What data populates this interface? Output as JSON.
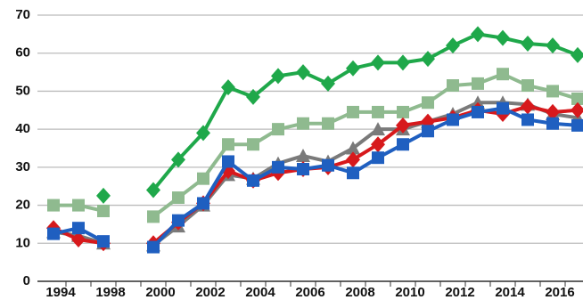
{
  "chart_data": {
    "type": "line",
    "categories": [
      "1994",
      null,
      "1998",
      null,
      "2000",
      null,
      "2002",
      null,
      "2004",
      null,
      "2006",
      null,
      "2008",
      null,
      "2010",
      null,
      "2012",
      null,
      "2014",
      null,
      "2016",
      null
    ],
    "series": [
      {
        "color": "#8fba8f",
        "marker": "square",
        "values": [
          20,
          20,
          18.5,
          null,
          17,
          22,
          27,
          36,
          36,
          40,
          41.5,
          41.5,
          44.5,
          44.5,
          44.5,
          47,
          51.5,
          52,
          54.5,
          51.5,
          50,
          48
        ]
      },
      {
        "color": "#7a7a7a",
        "marker": "triangle",
        "values": [
          13,
          12,
          10,
          null,
          9.5,
          14.5,
          20,
          28,
          27,
          31,
          33,
          31.5,
          35,
          40,
          40,
          42,
          44,
          47,
          47,
          46.5,
          44,
          43
        ]
      },
      {
        "color": "#d7191c",
        "marker": "diamond",
        "values": [
          14,
          11,
          10,
          null,
          10,
          15.5,
          20.5,
          29,
          26.5,
          28.5,
          29.5,
          30,
          32,
          36,
          41,
          42,
          43,
          45,
          44,
          46,
          44.5,
          45
        ]
      },
      {
        "color": "#1f5fc0",
        "marker": "square",
        "values": [
          12.5,
          14,
          10.5,
          null,
          9,
          16,
          20.5,
          31.5,
          26.5,
          30,
          29.5,
          30.5,
          28.5,
          32.5,
          36,
          39.5,
          42.5,
          44.5,
          45.5,
          42.5,
          41.5,
          41
        ]
      },
      {
        "color": "#1fa84a",
        "marker": "diamond",
        "values": [
          null,
          null,
          22.5,
          null,
          24,
          32,
          39,
          51,
          48.5,
          54,
          55,
          52,
          56,
          57.5,
          57.5,
          58.5,
          62,
          65,
          64,
          62.5,
          62,
          59.5
        ]
      }
    ],
    "ylim": [
      0,
      70
    ],
    "yticks": [
      0,
      10,
      20,
      30,
      40,
      50,
      60,
      70
    ],
    "grid": true
  }
}
